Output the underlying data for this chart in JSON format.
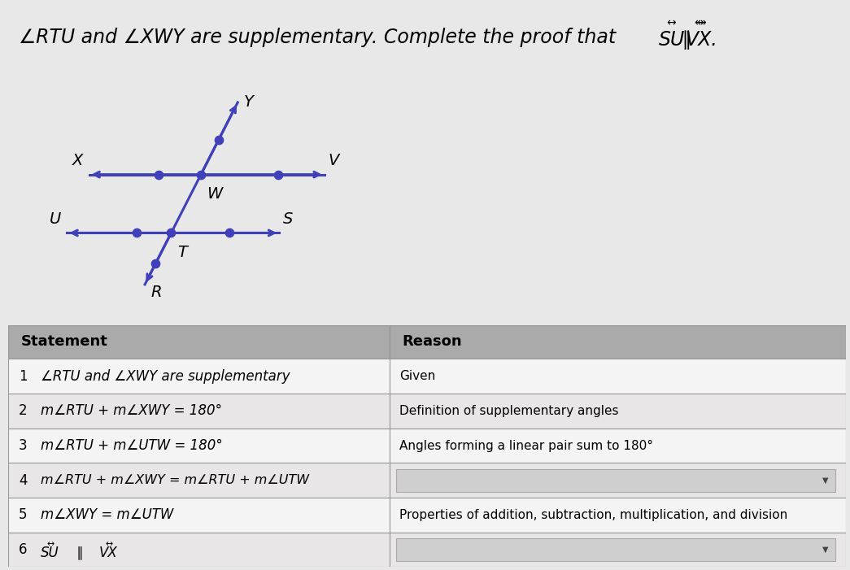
{
  "bg_color": "#e8e8e8",
  "title_fontsize": 17,
  "diagram": {
    "line_color": "#4040bb",
    "dot_color": "#4040bb",
    "dot_size": 55,
    "lw": 2.2
  },
  "table": {
    "header_bg": "#aaaaaa",
    "row_bg_light": "#f5f4f4",
    "row_bg_dark": "#e8e6e6",
    "dropdown_bg": "#d0cfcf",
    "border_color": "#999999",
    "col_split": 0.455,
    "rows": [
      {
        "num": "1",
        "statement": "∠RTU and ∠XWY are supplementary",
        "reason": "Given",
        "dropdown": false
      },
      {
        "num": "2",
        "statement": "m∠RTU + m∠XWY = 180°",
        "reason": "Definition of supplementary angles",
        "dropdown": false
      },
      {
        "num": "3",
        "statement": "m∠RTU + m∠UTW = 180°",
        "reason": "Angles forming a linear pair sum to 180°",
        "dropdown": false
      },
      {
        "num": "4",
        "statement": "m∠RTU + m∠XWY = m∠RTU + m∠UTW",
        "reason": "",
        "dropdown": true
      },
      {
        "num": "5",
        "statement": "m∠XWY = m∠UTW",
        "reason": "Properties of addition, subtraction, multiplication, and division",
        "dropdown": false
      },
      {
        "num": "6",
        "statement": "SU ∥ VX",
        "reason": "",
        "dropdown": true
      }
    ]
  }
}
